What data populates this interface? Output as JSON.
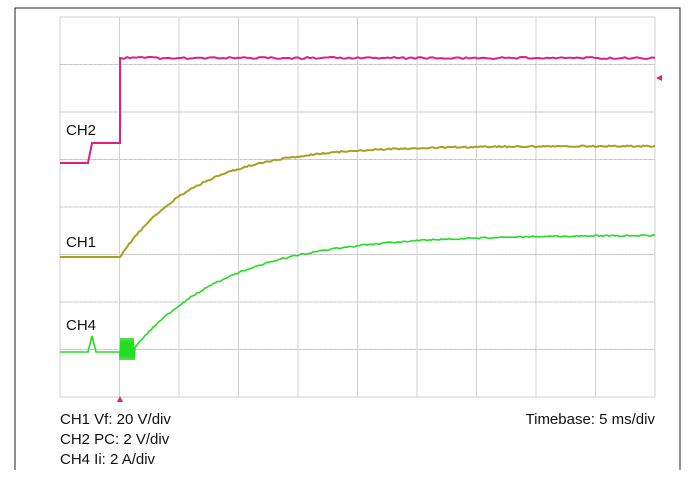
{
  "channels": [
    {
      "label": "CH2"
    },
    {
      "label": "CH1"
    },
    {
      "label": "CH4"
    }
  ],
  "scales": [
    "CH1 Vf: 20 V/div",
    "CH2 PC: 2 V/div",
    "CH4 Ii: 2 A/div"
  ],
  "timebase": "Timebase: 5 ms/div"
}
